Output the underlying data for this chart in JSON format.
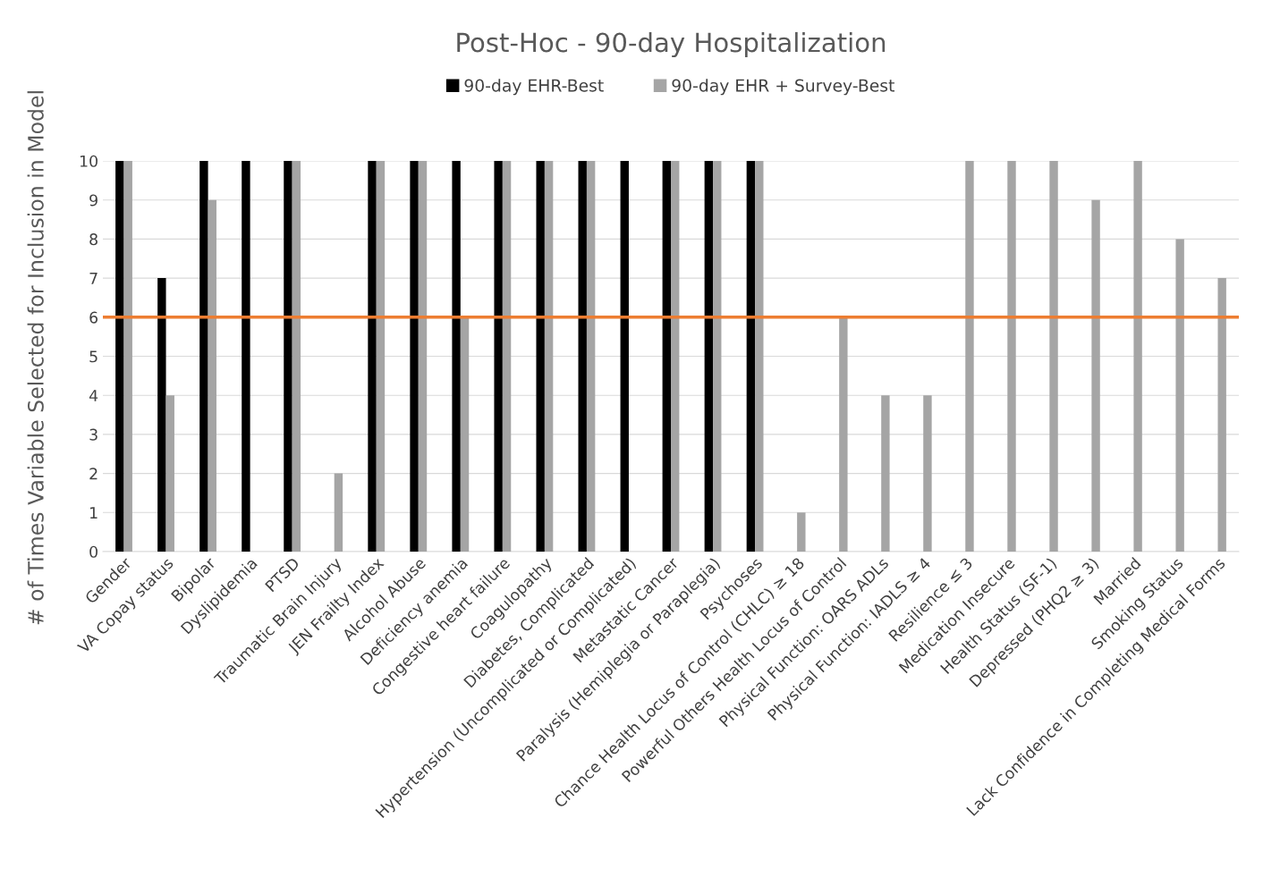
{
  "chart_data": {
    "type": "bar",
    "title": "Post-Hoc - 90-day Hospitalization",
    "ylabel": "# of Times Variable Selected for Inclusion in Model",
    "categories": [
      "Gender",
      "VA Copay status",
      "Bipolar",
      "Dyslipidemia",
      "PTSD",
      "Traumatic Brain Injury",
      "JEN Frailty Index",
      "Alcohol Abuse",
      "Deficiency anemia",
      "Congestive heart failure",
      "Coagulopathy",
      "Diabetes, Complicated",
      "Hypertension (Uncomplicated or Complicated)",
      "Metastatic Cancer",
      "Paralysis (Hemiplegia or Paraplegia)",
      "Psychoses",
      "Chance Health Locus of Control (CHLC) ≥ 18",
      "Powerful Others Health Locus of Control",
      "Physical Function: OARS ADLs",
      "Physical Function: IADLS ≥ 4",
      "Resilience ≤ 3",
      "Medication Insecure",
      "Health Status (SF-1)",
      "Depressed (PHQ2 ≥ 3)",
      "Married",
      "Smoking Status",
      "Lack Confidence in Completing Medical Forms"
    ],
    "series": [
      {
        "name": "90-day EHR-Best",
        "color": "#000000",
        "values": [
          10,
          7,
          10,
          10,
          10,
          null,
          10,
          10,
          10,
          10,
          10,
          10,
          10,
          10,
          10,
          10,
          null,
          null,
          null,
          null,
          null,
          null,
          null,
          null,
          null,
          null,
          null
        ]
      },
      {
        "name": "90-day EHR + Survey-Best",
        "color": "#a5a5a5",
        "values": [
          10,
          4,
          9,
          null,
          10,
          2,
          10,
          10,
          6,
          10,
          10,
          10,
          null,
          10,
          10,
          10,
          1,
          6,
          4,
          4,
          10,
          10,
          10,
          9,
          10,
          8,
          7
        ]
      }
    ],
    "ylim": [
      0,
      10
    ],
    "yticks": [
      0,
      1,
      2,
      3,
      4,
      5,
      6,
      7,
      8,
      9,
      10
    ],
    "grid": "y",
    "legend": "top",
    "ref_lines": [
      {
        "axis": "y",
        "value": 6,
        "color": "#ed7d31",
        "line_style": "solid"
      }
    ]
  }
}
